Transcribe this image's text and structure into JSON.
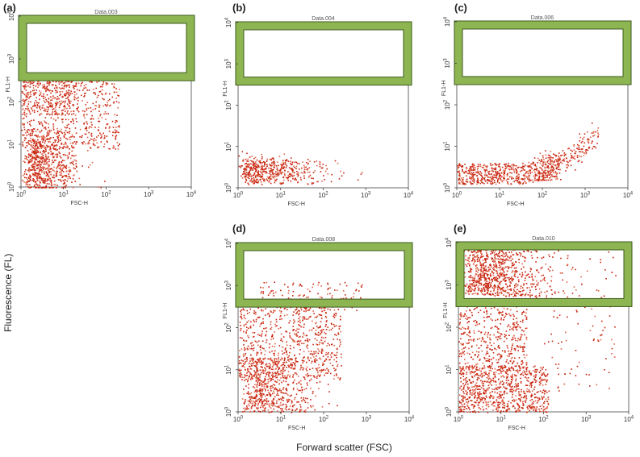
{
  "figure": {
    "y_label": "Fluorescence (FL)",
    "x_label": "Forward scatter (FSC)"
  },
  "chart_data": [
    {
      "type": "scatter",
      "panel": "(a)",
      "title": "Data.003",
      "xlabel": "FSC-H",
      "ylabel": "FL1-H",
      "scale": "log",
      "xlim": [
        1,
        10000
      ],
      "ylim": [
        1,
        10000
      ],
      "x_ticks": [
        "10^0",
        "10^1",
        "10^2",
        "10^3",
        "10^4"
      ],
      "y_ticks": [
        "10^0",
        "10^1",
        "10^2",
        "10^3",
        "10^4"
      ],
      "gate": {
        "fl_min": 350,
        "fl_max": 10000,
        "fsc_min": 1,
        "fsc_max": 10000
      },
      "population": {
        "description": "broad cloud",
        "fsc_range": [
          1,
          600
        ],
        "fl_range": [
          1,
          350
        ],
        "points": 1500
      }
    },
    {
      "type": "scatter",
      "panel": "(b)",
      "title": "Data.004",
      "xlabel": "FSC-H",
      "ylabel": "FL1-H",
      "scale": "log",
      "xlim": [
        1,
        10000
      ],
      "ylim": [
        1,
        10000
      ],
      "x_ticks": [
        "10^0",
        "10^1",
        "10^2",
        "10^3",
        "10^4"
      ],
      "y_ticks": [
        "10^0",
        "10^1",
        "10^2",
        "10^3",
        "10^4"
      ],
      "gate": {
        "fl_min": 350,
        "fl_max": 10000,
        "fsc_min": 1,
        "fsc_max": 10000
      },
      "population": {
        "description": "low fluorescence band",
        "fsc_range": [
          1,
          1000
        ],
        "fl_range": [
          1,
          12
        ],
        "points": 500
      }
    },
    {
      "type": "scatter",
      "panel": "(c)",
      "title": "Data.006",
      "xlabel": "FSC-H",
      "ylabel": "FL1-H",
      "scale": "log",
      "xlim": [
        1,
        10000
      ],
      "ylim": [
        1,
        10000
      ],
      "x_ticks": [
        "10^0",
        "10^1",
        "10^2",
        "10^3",
        "10^4"
      ],
      "y_ticks": [
        "10^0",
        "10^1",
        "10^2",
        "10^3",
        "10^4"
      ],
      "gate": {
        "fl_min": 350,
        "fl_max": 10000,
        "fsc_min": 1,
        "fsc_max": 10000
      },
      "population": {
        "description": "low band rising at high FSC",
        "fsc_range": [
          1,
          3000
        ],
        "fl_range": [
          1,
          50
        ],
        "points": 800
      }
    },
    {
      "type": "scatter",
      "panel": "(d)",
      "title": "Data.008",
      "xlabel": "FSC-H",
      "ylabel": "FL1-H",
      "scale": "log",
      "xlim": [
        1,
        10000
      ],
      "ylim": [
        1,
        10000
      ],
      "x_ticks": [
        "10^0",
        "10^1",
        "10^2",
        "10^3",
        "10^4"
      ],
      "y_ticks": [
        "10^0",
        "10^1",
        "10^2",
        "10^3",
        "10^4"
      ],
      "gate": {
        "fl_min": 350,
        "fl_max": 10000,
        "fsc_min": 1,
        "fsc_max": 10000
      },
      "population": {
        "description": "broad cloud, partly inside gate",
        "fsc_range": [
          1,
          1000
        ],
        "fl_range": [
          1,
          1200
        ],
        "points": 1500
      }
    },
    {
      "type": "scatter",
      "panel": "(e)",
      "title": "Data.010",
      "xlabel": "FSC-H",
      "ylabel": "FL1-H",
      "scale": "log",
      "xlim": [
        1,
        10000
      ],
      "ylim": [
        1,
        10000
      ],
      "x_ticks": [
        "10^0",
        "10^1",
        "10^2",
        "10^3",
        "10^4"
      ],
      "y_ticks": [
        "10^0",
        "10^1",
        "10^2",
        "10^3",
        "10^4"
      ],
      "gate": {
        "fl_min": 350,
        "fl_max": 10000,
        "fsc_min": 1,
        "fsc_max": 10000
      },
      "population": {
        "description": "dense population inside gate plus low band",
        "fsc_range": [
          1,
          5000
        ],
        "fl_range": [
          1,
          10000
        ],
        "points": 2600
      }
    }
  ],
  "colors": {
    "points": "#c8250f",
    "points_light": "#e0644a",
    "gate_fill": "#8db552",
    "gate_edge": "#3d5a1d",
    "axis": "#444444"
  }
}
